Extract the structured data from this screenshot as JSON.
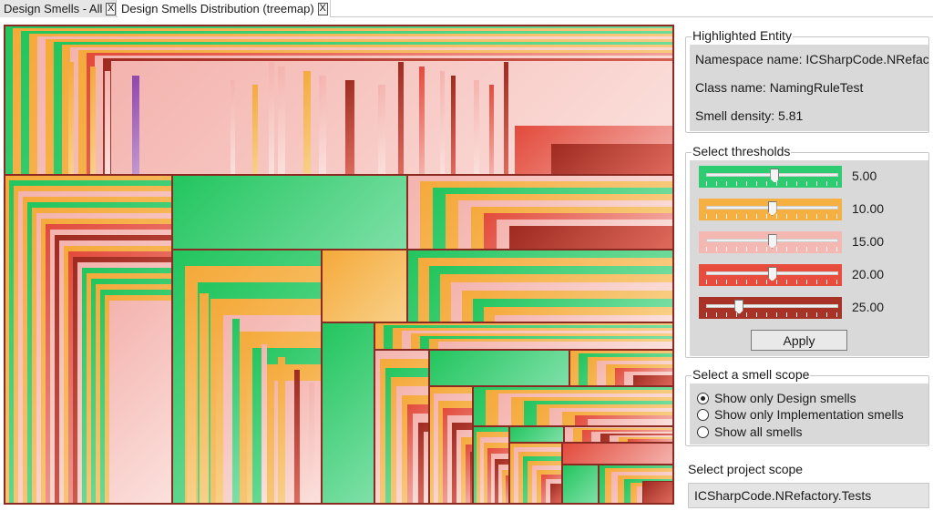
{
  "tabs": [
    {
      "label": "Design Smells - All",
      "close": "X",
      "active": false
    },
    {
      "label": "Design Smells Distribution (treemap)",
      "close": "X",
      "active": true
    }
  ],
  "colors": {
    "green": "#2ecc71",
    "orange": "#f5b041",
    "pink": "#f5b7b1",
    "red": "#e74c3c",
    "dark_red": "#a93226",
    "purple": "#9b59b6",
    "border": "#8a2a22"
  },
  "highlighted": {
    "title": "Highlighted Entity",
    "namespace_line": "Namespace name: ICSharpCode.NRefac",
    "class_line": "Class name: NamingRuleTest",
    "density_line": "Smell density: 5.81"
  },
  "thresholds": {
    "title": "Select thresholds",
    "items": [
      {
        "value": "5.00",
        "color": "#2ecc71",
        "level": 0.52
      },
      {
        "value": "10.00",
        "color": "#f5b041",
        "level": 0.5
      },
      {
        "value": "15.00",
        "color": "#f5b7b1",
        "level": 0.5
      },
      {
        "value": "20.00",
        "color": "#e74c3c",
        "level": 0.5
      },
      {
        "value": "25.00",
        "color": "#a93226",
        "level": 0.25
      }
    ],
    "apply_label": "Apply"
  },
  "scope": {
    "title": "Select a smell scope",
    "options": [
      {
        "label": "Show only Design smells",
        "checked": true
      },
      {
        "label": "Show only Implementation smells",
        "checked": false
      },
      {
        "label": "Show all smells",
        "checked": false
      }
    ]
  },
  "project": {
    "label": "Select project scope",
    "selected": "ICSharpCode.NRefactory.Tests"
  }
}
